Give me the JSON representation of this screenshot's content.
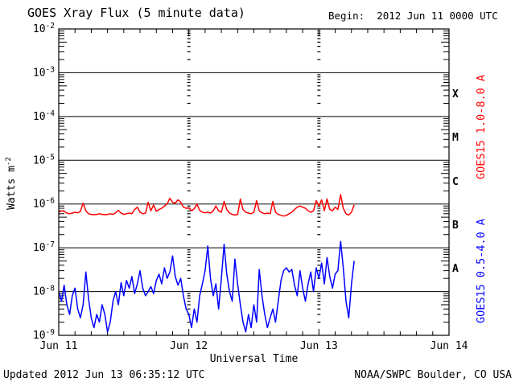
{
  "title": "GOES Xray Flux (5 minute data)",
  "begin_label": "Begin:  2012 Jun 11 0000 UTC",
  "footer": {
    "updated": "Updated 2012 Jun 13 06:35:12 UTC",
    "credit": "NOAA/SWPC Boulder, CO USA"
  },
  "chart_data": {
    "type": "line",
    "title": "GOES Xray Flux (5 minute data)",
    "xlabel": "Universal Time",
    "ylabel": "Watts m^-2",
    "ylabel_base": "Watts m",
    "ylabel_exp": "-2",
    "yscale": "log",
    "ylim": [
      1e-09,
      0.01
    ],
    "x_hours_total": 72,
    "x_tick_labels": [
      "Jun 11",
      "Jun 12",
      "Jun 13",
      "Jun 14"
    ],
    "y_tick_exponents": [
      -2,
      -3,
      -4,
      -5,
      -6,
      -7,
      -8,
      -9
    ],
    "grid": {
      "horizontal": "solid per decade",
      "vertical": "dotted at day boundaries"
    },
    "flare_classes": [
      {
        "label": "X",
        "band": [
          0.0001,
          0.001
        ]
      },
      {
        "label": "M",
        "band": [
          1e-05,
          0.0001
        ]
      },
      {
        "label": "C",
        "band": [
          1e-06,
          1e-05
        ]
      },
      {
        "label": "B",
        "band": [
          1e-07,
          1e-06
        ]
      },
      {
        "label": "A",
        "band": [
          1e-08,
          1e-07
        ]
      }
    ],
    "colors": {
      "long_channel": "#ff0000",
      "short_channel": "#0000ff",
      "axis": "#000000"
    },
    "series": [
      {
        "name": "GOES15 1.0-8.0 A",
        "color": "#ff0000",
        "x_start_hours": 0,
        "x_step_hours": 0.5,
        "values": [
          6.5e-07,
          7e-07,
          6.8e-07,
          6.2e-07,
          6e-07,
          6.2e-07,
          6.5e-07,
          6.3e-07,
          6.8e-07,
          1.05e-06,
          7e-07,
          6e-07,
          5.8e-07,
          5.7e-07,
          5.8e-07,
          6e-07,
          5.8e-07,
          5.7e-07,
          5.8e-07,
          6e-07,
          5.8e-07,
          6.3e-07,
          7.2e-07,
          6.2e-07,
          5.8e-07,
          6e-07,
          6.2e-07,
          6e-07,
          7.5e-07,
          8.5e-07,
          6.5e-07,
          6e-07,
          6.2e-07,
          1.1e-06,
          7e-07,
          9.5e-07,
          6.8e-07,
          7.5e-07,
          8e-07,
          9e-07,
          1e-06,
          1.35e-06,
          1.1e-06,
          1.05e-06,
          1.25e-06,
          1.1e-06,
          8.5e-07,
          8e-07,
          8.2e-07,
          7e-07,
          7.8e-07,
          1e-06,
          7.2e-07,
          6.5e-07,
          6.3e-07,
          6.5e-07,
          6.2e-07,
          7e-07,
          9e-07,
          7e-07,
          6.5e-07,
          1.15e-06,
          7.5e-07,
          6.2e-07,
          5.8e-07,
          5.6e-07,
          5.8e-07,
          1.3e-06,
          7.5e-07,
          6.5e-07,
          6.2e-07,
          6e-07,
          6.5e-07,
          1.2e-06,
          7e-07,
          6.3e-07,
          6e-07,
          6.2e-07,
          6e-07,
          1.15e-06,
          6.5e-07,
          5.8e-07,
          5.5e-07,
          5.3e-07,
          5.5e-07,
          6e-07,
          6.5e-07,
          7.5e-07,
          8.5e-07,
          9e-07,
          8.5e-07,
          8e-07,
          7e-07,
          6.5e-07,
          7e-07,
          1.2e-06,
          9e-07,
          1.25e-06,
          7e-07,
          1.3e-06,
          7.5e-07,
          7e-07,
          8.5e-07,
          7.5e-07,
          1.65e-06,
          8e-07,
          6e-07,
          5.6e-07,
          6.5e-07,
          9.5e-07
        ]
      },
      {
        "name": "GOES15 0.5-4.0 A",
        "color": "#0000ff",
        "x_start_hours": 0,
        "x_step_hours": 0.5,
        "values": [
          1e-08,
          6e-09,
          1.4e-08,
          5e-09,
          3e-09,
          8e-09,
          1.2e-08,
          4e-09,
          2.5e-09,
          5e-09,
          2.8e-08,
          7e-09,
          2.5e-09,
          1.5e-09,
          3e-09,
          2e-09,
          5e-09,
          3e-09,
          1.2e-09,
          2e-09,
          6e-09,
          1e-08,
          5e-09,
          1.6e-08,
          8e-09,
          1.8e-08,
          1.2e-08,
          2.2e-08,
          9e-09,
          1.5e-08,
          3e-08,
          1.2e-08,
          8e-09,
          1e-08,
          1.3e-08,
          9e-09,
          1.8e-08,
          2.5e-08,
          1.5e-08,
          3.5e-08,
          2e-08,
          2.8e-08,
          6.5e-08,
          2.2e-08,
          1.4e-08,
          2e-08,
          8e-09,
          4e-09,
          3e-09,
          1.5e-09,
          4e-09,
          2e-09,
          8e-09,
          1.5e-08,
          3e-08,
          1.1e-07,
          2e-08,
          8e-09,
          1.5e-08,
          4e-09,
          2e-08,
          1.2e-07,
          2.5e-08,
          1e-08,
          6e-09,
          5.5e-08,
          1.5e-08,
          5e-09,
          2e-09,
          1.2e-09,
          3e-09,
          1.5e-09,
          5e-09,
          2e-09,
          3.2e-08,
          8e-09,
          3e-09,
          1.5e-09,
          2.5e-09,
          4e-09,
          2e-09,
          6e-09,
          1.8e-08,
          3e-08,
          3.5e-08,
          2.8e-08,
          3.2e-08,
          1.4e-08,
          8e-09,
          3e-08,
          1.2e-08,
          6e-09,
          1.5e-08,
          2.8e-08,
          1e-08,
          3.5e-08,
          2e-08,
          4.5e-08,
          1.5e-08,
          6e-08,
          2.2e-08,
          1.2e-08,
          2.5e-08,
          3e-08,
          1.4e-07,
          3.5e-08,
          6e-09,
          2.5e-09,
          1.5e-08,
          5e-08
        ]
      }
    ]
  }
}
